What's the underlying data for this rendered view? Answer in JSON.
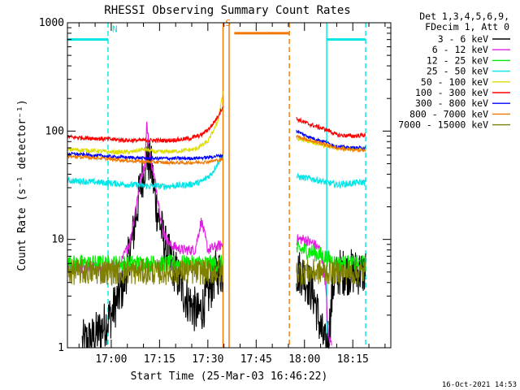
{
  "chart_data": {
    "type": "line",
    "title": "RHESSI Observing Summary Count Rates",
    "xlabel": "Start Time (25-Mar-03 16:46:22)",
    "ylabel": "Count Rate (s⁻¹ detector⁻¹)",
    "ylog": true,
    "xlim_min": [
      -13.6,
      86.8
    ],
    "ylim": [
      1,
      1000
    ],
    "x_ticks": [
      {
        "label": "17:00",
        "min": 0
      },
      {
        "label": "17:15",
        "min": 15
      },
      {
        "label": "17:30",
        "min": 30
      },
      {
        "label": "17:45",
        "min": 45
      },
      {
        "label": "18:00",
        "min": 60
      },
      {
        "label": "18:15",
        "min": 75
      }
    ],
    "y_ticks": [
      {
        "label": "1",
        "value": 1
      },
      {
        "label": "10",
        "value": 10
      },
      {
        "label": "100",
        "value": 100
      },
      {
        "label": "1000",
        "value": 1000
      }
    ],
    "legend_header": [
      "Det 1,3,4,5,6,9,",
      "FDecim 1, Att 0"
    ],
    "legend_position": "outside-right",
    "flags": [
      {
        "label": "N",
        "color": "#00e5e5",
        "level": 700,
        "from": -13.6,
        "to": -1.0
      },
      {
        "label": "S",
        "color": "#f07800",
        "level": 800,
        "from": 38.2,
        "to": 55.3
      },
      {
        "label": "",
        "color": "#00e5e5",
        "level": 700,
        "from": 66.9,
        "to": 79.0
      }
    ],
    "markers": [
      {
        "color": "#00e5e5",
        "style": "dashed",
        "at": -1.0
      },
      {
        "color": "#f07800",
        "style": "solid",
        "at": 34.7
      },
      {
        "color": "#f07800",
        "style": "solid",
        "at": 36.6
      },
      {
        "color": "#f07800",
        "style": "dashed",
        "at": 55.3
      },
      {
        "color": "#00e5e5",
        "style": "solid",
        "at": 66.9
      },
      {
        "color": "#00e5e5",
        "style": "dashed",
        "at": 79.0
      }
    ],
    "series": [
      {
        "name": "3 - 6 keV",
        "color": "#000000",
        "noise": 0.22,
        "points": [
          [
            -9,
            1.1
          ],
          [
            -6,
            1.2
          ],
          [
            -3,
            1.5
          ],
          [
            0,
            2.0
          ],
          [
            4,
            4.0
          ],
          [
            7,
            12
          ],
          [
            9,
            30
          ],
          [
            11,
            60
          ],
          [
            12.5,
            45
          ],
          [
            14,
            20
          ],
          [
            17,
            8
          ],
          [
            20,
            5
          ],
          [
            23,
            3
          ],
          [
            27,
            2
          ],
          [
            30,
            3
          ],
          [
            32.5,
            5
          ],
          [
            34.7,
            5
          ]
        ],
        "points2": [
          [
            57.5,
            5
          ],
          [
            59,
            5
          ],
          [
            61,
            4
          ],
          [
            63,
            3
          ],
          [
            65,
            1.5
          ],
          [
            66.5,
            1
          ],
          [
            67.5,
            1.3
          ],
          [
            69,
            4
          ],
          [
            71,
            5
          ],
          [
            74,
            5
          ],
          [
            77,
            5
          ],
          [
            79,
            5
          ]
        ]
      },
      {
        "name": "6 - 12 keV",
        "color": "#e020e0",
        "noise": 0.05,
        "points": [
          [
            -13.6,
            5.5
          ],
          [
            -9,
            5.5
          ],
          [
            -4,
            5.5
          ],
          [
            0,
            5.5
          ],
          [
            3,
            6
          ],
          [
            6,
            10
          ],
          [
            9,
            35
          ],
          [
            10.5,
            50
          ],
          [
            11,
            120
          ],
          [
            12,
            60
          ],
          [
            14,
            30
          ],
          [
            16,
            12
          ],
          [
            18,
            9
          ],
          [
            22,
            8
          ],
          [
            26,
            8
          ],
          [
            28,
            15
          ],
          [
            30,
            8
          ],
          [
            34.7,
            9
          ]
        ],
        "points2": [
          [
            57.5,
            10
          ],
          [
            60,
            10
          ],
          [
            63,
            9
          ],
          [
            65,
            8
          ],
          [
            66.5,
            4
          ],
          [
            67.5,
            1.2
          ],
          [
            68.5,
            1.1
          ]
        ]
      },
      {
        "name": "12 - 25 keV",
        "color": "#00ee00",
        "noise": 0.08,
        "points": [
          [
            -13.6,
            6
          ],
          [
            -6,
            6
          ],
          [
            0,
            6
          ],
          [
            6,
            6
          ],
          [
            12,
            6
          ],
          [
            18,
            6
          ],
          [
            24,
            6
          ],
          [
            30,
            6
          ],
          [
            34.7,
            6
          ]
        ],
        "points2": [
          [
            57.5,
            8
          ],
          [
            60,
            8
          ],
          [
            63,
            7.5
          ],
          [
            66,
            7
          ],
          [
            70,
            6
          ],
          [
            79,
            6
          ]
        ]
      },
      {
        "name": "25 - 50 keV",
        "color": "#00e5e5",
        "noise": 0.03,
        "points": [
          [
            -13.6,
            35
          ],
          [
            -6,
            34
          ],
          [
            0,
            33
          ],
          [
            6,
            32
          ],
          [
            12,
            31
          ],
          [
            18,
            31
          ],
          [
            24,
            32
          ],
          [
            28,
            34
          ],
          [
            31,
            40
          ],
          [
            33,
            50
          ],
          [
            34.7,
            60
          ]
        ],
        "points2": [
          [
            57.5,
            38
          ],
          [
            60,
            37
          ],
          [
            63,
            36
          ],
          [
            66,
            34
          ],
          [
            70,
            32
          ],
          [
            75,
            33
          ],
          [
            79,
            34
          ]
        ]
      },
      {
        "name": "50 - 100 keV",
        "color": "#dddd00",
        "noise": 0.02,
        "points": [
          [
            -13.6,
            68
          ],
          [
            -6,
            66
          ],
          [
            0,
            64
          ],
          [
            6,
            64
          ],
          [
            10,
            68
          ],
          [
            14,
            64
          ],
          [
            20,
            65
          ],
          [
            26,
            68
          ],
          [
            30,
            80
          ],
          [
            33,
            120
          ],
          [
            34.7,
            230
          ]
        ],
        "points2": [
          [
            57.5,
            85
          ],
          [
            60,
            82
          ],
          [
            63,
            78
          ],
          [
            66,
            74
          ],
          [
            70,
            70
          ],
          [
            75,
            68
          ],
          [
            79,
            68
          ]
        ]
      },
      {
        "name": "100 - 300 keV",
        "color": "#ff0000",
        "noise": 0.02,
        "points": [
          [
            -13.6,
            88
          ],
          [
            -6,
            86
          ],
          [
            0,
            84
          ],
          [
            6,
            82
          ],
          [
            12,
            82
          ],
          [
            18,
            82
          ],
          [
            24,
            85
          ],
          [
            28,
            92
          ],
          [
            31,
            110
          ],
          [
            33,
            135
          ],
          [
            34.7,
            170
          ]
        ],
        "points2": [
          [
            57.5,
            130
          ],
          [
            60,
            120
          ],
          [
            63,
            112
          ],
          [
            66,
            105
          ],
          [
            68,
            100
          ],
          [
            70,
            92
          ],
          [
            75,
            90
          ],
          [
            79,
            92
          ]
        ]
      },
      {
        "name": "300 - 800 keV",
        "color": "#0000ff",
        "noise": 0.015,
        "points": [
          [
            -13.6,
            62
          ],
          [
            -6,
            60
          ],
          [
            0,
            58
          ],
          [
            6,
            57
          ],
          [
            12,
            56
          ],
          [
            18,
            56
          ],
          [
            24,
            56
          ],
          [
            30,
            57
          ],
          [
            34.7,
            60
          ]
        ],
        "points2": [
          [
            57.5,
            100
          ],
          [
            60,
            92
          ],
          [
            63,
            85
          ],
          [
            66,
            80
          ],
          [
            70,
            72
          ],
          [
            75,
            70
          ],
          [
            79,
            70
          ]
        ]
      },
      {
        "name": "800 - 7000 keV",
        "color": "#f07800",
        "noise": 0.015,
        "points": [
          [
            -13.6,
            58
          ],
          [
            -6,
            57
          ],
          [
            0,
            55
          ],
          [
            6,
            53
          ],
          [
            12,
            52
          ],
          [
            18,
            51
          ],
          [
            24,
            51
          ],
          [
            30,
            52
          ],
          [
            34.7,
            55
          ]
        ],
        "points2": [
          [
            57.5,
            90
          ],
          [
            60,
            85
          ],
          [
            63,
            80
          ],
          [
            66,
            76
          ],
          [
            70,
            70
          ],
          [
            75,
            67
          ],
          [
            79,
            66
          ]
        ]
      },
      {
        "name": "7000 - 15000 keV",
        "color": "#808000",
        "noise": 0.12,
        "points": [
          [
            -13.6,
            5
          ],
          [
            -6,
            5
          ],
          [
            0,
            5
          ],
          [
            6,
            5
          ],
          [
            12,
            5
          ],
          [
            18,
            5
          ],
          [
            24,
            5
          ],
          [
            30,
            5
          ],
          [
            34.7,
            5
          ]
        ],
        "points2": [
          [
            57.5,
            5
          ],
          [
            62,
            5
          ],
          [
            66,
            5
          ],
          [
            70,
            5
          ],
          [
            75,
            5
          ],
          [
            79,
            5
          ]
        ]
      }
    ]
  },
  "footer": {
    "timestamp": "16-Oct-2021 14:53"
  }
}
